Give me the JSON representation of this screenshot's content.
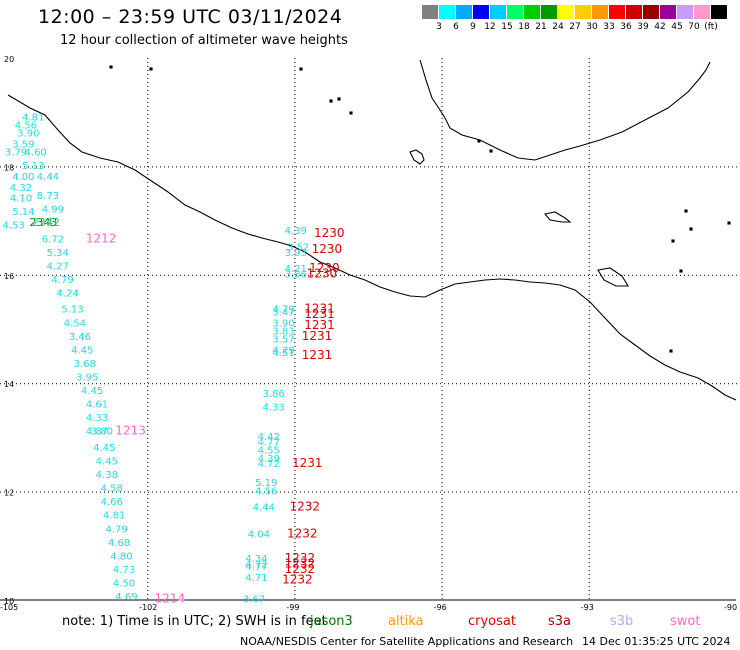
{
  "header": {
    "title": "12:00 – 23:59 UTC 03/11/2024",
    "subtitle": "12 hour collection of altimeter wave heights"
  },
  "legend": {
    "colors": [
      "#808080",
      "#00ffff",
      "#00aaff",
      "#0000ff",
      "#00ccff",
      "#00ff66",
      "#00cc00",
      "#009900",
      "#ffff00",
      "#ffcc00",
      "#ff9900",
      "#ff0000",
      "#cc0000",
      "#990000",
      "#990099",
      "#cc99ff",
      "#ff99cc",
      "#000000"
    ],
    "ticks": [
      "3",
      "6",
      "9",
      "12",
      "15",
      "18",
      "21",
      "24",
      "27",
      "30",
      "33",
      "36",
      "39",
      "42",
      "45",
      "70",
      "(ft)"
    ]
  },
  "map": {
    "lat_labels": [
      "20",
      "18",
      "16",
      "14",
      "12",
      "10"
    ],
    "lon_labels": [
      "-105",
      "-102",
      "-99",
      "-96",
      "-93",
      "-90"
    ],
    "jason_color": "#22dddd",
    "cryosat_color": "#dd0000",
    "swot_color": "#ff66cc",
    "jason_labels": [
      {
        "t": "4.81",
        "lon": -104.55,
        "lat": 18.85
      },
      {
        "t": "4.56",
        "lon": -104.7,
        "lat": 18.7
      },
      {
        "t": "3.90",
        "lon": -104.65,
        "lat": 18.55
      },
      {
        "t": "3.59",
        "lon": -104.75,
        "lat": 18.35
      },
      {
        "t": "3.79",
        "lon": -104.9,
        "lat": 18.2
      },
      {
        "t": "4.60",
        "lon": -104.5,
        "lat": 18.2
      },
      {
        "t": "5.13",
        "lon": -104.55,
        "lat": 17.95
      },
      {
        "t": "4.00",
        "lon": -104.75,
        "lat": 17.75
      },
      {
        "t": "4.44",
        "lon": -104.25,
        "lat": 17.75
      },
      {
        "t": "4.32",
        "lon": -104.8,
        "lat": 17.55
      },
      {
        "t": "8.73",
        "lon": -104.25,
        "lat": 17.4
      },
      {
        "t": "4.10",
        "lon": -104.8,
        "lat": 17.35
      },
      {
        "t": "5.14",
        "lon": -104.75,
        "lat": 17.1
      },
      {
        "t": "4.99",
        "lon": -104.15,
        "lat": 17.15
      },
      {
        "t": "4.53",
        "lon": -104.95,
        "lat": 16.85
      },
      {
        "t": "6.72",
        "lon": -104.15,
        "lat": 16.6
      },
      {
        "t": "5.34",
        "lon": -104.05,
        "lat": 16.35
      },
      {
        "t": "4.27",
        "lon": -104.05,
        "lat": 16.1
      },
      {
        "t": "4.79",
        "lon": -103.95,
        "lat": 15.85
      },
      {
        "t": "4.24",
        "lon": -103.85,
        "lat": 15.6
      },
      {
        "t": "5.13",
        "lon": -103.75,
        "lat": 15.3
      },
      {
        "t": "4.54",
        "lon": -103.7,
        "lat": 15.05
      },
      {
        "t": "3.46",
        "lon": -103.6,
        "lat": 14.8
      },
      {
        "t": "4.45",
        "lon": -103.55,
        "lat": 14.55
      },
      {
        "t": "3.68",
        "lon": -103.5,
        "lat": 14.3
      },
      {
        "t": "3.95",
        "lon": -103.45,
        "lat": 14.05
      },
      {
        "t": "4.45",
        "lon": -103.35,
        "lat": 13.8
      },
      {
        "t": "4.61",
        "lon": -103.25,
        "lat": 13.55
      },
      {
        "t": "4.33",
        "lon": -103.25,
        "lat": 13.3
      },
      {
        "t": "3.80",
        "lon": -103.15,
        "lat": 13.05
      },
      {
        "t": "4.87",
        "lon": -103.25,
        "lat": 13.05
      },
      {
        "t": "4.45",
        "lon": -103.1,
        "lat": 12.75
      },
      {
        "t": "4.45",
        "lon": -103.05,
        "lat": 12.5
      },
      {
        "t": "4.38",
        "lon": -103.05,
        "lat": 12.25
      },
      {
        "t": "4.58",
        "lon": -102.95,
        "lat": 12.0
      },
      {
        "t": "4.66",
        "lon": -102.95,
        "lat": 11.75
      },
      {
        "t": "4.81",
        "lon": -102.9,
        "lat": 11.5
      },
      {
        "t": "4.79",
        "lon": -102.85,
        "lat": 11.25
      },
      {
        "t": "4.68",
        "lon": -102.8,
        "lat": 11.0
      },
      {
        "t": "4.80",
        "lon": -102.75,
        "lat": 10.75
      },
      {
        "t": "4.73",
        "lon": -102.7,
        "lat": 10.5
      },
      {
        "t": "4.50",
        "lon": -102.7,
        "lat": 10.25
      },
      {
        "t": "4.69",
        "lon": -102.65,
        "lat": 10.0
      },
      {
        "t": "4.39",
        "lon": -99.2,
        "lat": 16.75
      },
      {
        "t": "3.52",
        "lon": -99.15,
        "lat": 16.45
      },
      {
        "t": "3.93",
        "lon": -99.2,
        "lat": 16.35
      },
      {
        "t": "4.21",
        "lon": -99.2,
        "lat": 16.05
      },
      {
        "t": "3.86",
        "lon": -99.2,
        "lat": 15.95
      },
      {
        "t": "4.79",
        "lon": -99.45,
        "lat": 15.3
      },
      {
        "t": "3.47",
        "lon": -99.45,
        "lat": 15.25
      },
      {
        "t": "3.90",
        "lon": -99.45,
        "lat": 15.05
      },
      {
        "t": "3.83",
        "lon": -99.45,
        "lat": 14.9
      },
      {
        "t": "3.57",
        "lon": -99.45,
        "lat": 14.75
      },
      {
        "t": "4.29",
        "lon": -99.45,
        "lat": 14.55
      },
      {
        "t": "4.51",
        "lon": -99.45,
        "lat": 14.5
      },
      {
        "t": "3.86",
        "lon": -99.65,
        "lat": 13.75
      },
      {
        "t": "4.33",
        "lon": -99.65,
        "lat": 13.5
      },
      {
        "t": "4.42",
        "lon": -99.75,
        "lat": 12.95
      },
      {
        "t": "4.77",
        "lon": -99.75,
        "lat": 12.85
      },
      {
        "t": "4.55",
        "lon": -99.75,
        "lat": 12.7
      },
      {
        "t": "4.39",
        "lon": -99.75,
        "lat": 12.55
      },
      {
        "t": "4.72",
        "lon": -99.75,
        "lat": 12.45
      },
      {
        "t": "5.19",
        "lon": -99.8,
        "lat": 12.1
      },
      {
        "t": "4.56",
        "lon": -99.8,
        "lat": 11.95
      },
      {
        "t": "4.44",
        "lon": -99.85,
        "lat": 11.65
      },
      {
        "t": "4.04",
        "lon": -99.95,
        "lat": 11.15
      },
      {
        "t": "4.34",
        "lon": -100.0,
        "lat": 10.7
      },
      {
        "t": "4.72",
        "lon": -100.0,
        "lat": 10.6
      },
      {
        "t": "4.77",
        "lon": -100.0,
        "lat": 10.55
      },
      {
        "t": "4.71",
        "lon": -100.0,
        "lat": 10.35
      },
      {
        "t": "3.67",
        "lon": -100.05,
        "lat": 9.95
      }
    ],
    "jason_dark_label": {
      "t": "2343",
      "lon": -104.4,
      "lat": 16.9,
      "color": "#117711"
    },
    "jason_dark_label2": {
      "t": "2342",
      "lon": -104.35,
      "lat": 16.9,
      "color": "#22cc66"
    },
    "cryosat_labels": [
      {
        "t": "1230",
        "lon": -98.6,
        "lat": 16.7
      },
      {
        "t": "1230",
        "lon": -98.65,
        "lat": 16.4
      },
      {
        "t": "1230",
        "lon": -98.7,
        "lat": 16.05
      },
      {
        "t": "1230",
        "lon": -98.75,
        "lat": 15.95
      },
      {
        "t": "1231",
        "lon": -98.8,
        "lat": 15.3
      },
      {
        "t": "1231",
        "lon": -98.8,
        "lat": 15.2
      },
      {
        "t": "1231",
        "lon": -98.8,
        "lat": 15.0
      },
      {
        "t": "1231",
        "lon": -98.85,
        "lat": 14.8
      },
      {
        "t": "1231",
        "lon": -98.85,
        "lat": 14.45
      },
      {
        "t": "1231",
        "lon": -99.05,
        "lat": 12.45
      },
      {
        "t": "1232",
        "lon": -99.1,
        "lat": 11.65
      },
      {
        "t": "1232",
        "lon": -99.15,
        "lat": 11.15
      },
      {
        "t": "1232",
        "lon": -99.2,
        "lat": 10.7
      },
      {
        "t": "1232",
        "lon": -99.2,
        "lat": 10.6
      },
      {
        "t": "1232",
        "lon": -99.2,
        "lat": 10.5
      },
      {
        "t": "1232",
        "lon": -99.25,
        "lat": 10.3
      }
    ],
    "swot_labels": [
      {
        "t": "1212",
        "lon": -103.25,
        "lat": 16.6
      },
      {
        "t": "1213",
        "lon": -102.65,
        "lat": 13.05
      },
      {
        "t": "1214",
        "lon": -101.85,
        "lat": 9.95
      }
    ]
  },
  "footer": {
    "note": "note:  1) Time is in UTC;  2) SWH is in feet",
    "sats": [
      {
        "name": "jason3",
        "color": "#007700",
        "x": 310
      },
      {
        "name": "altika",
        "color": "#ff9900",
        "x": 388
      },
      {
        "name": "cryosat",
        "color": "#dd0000",
        "x": 468
      },
      {
        "name": "s3a",
        "color": "#aa0000",
        "x": 548
      },
      {
        "name": "s3b",
        "color": "#b8a8ff",
        "x": 610
      },
      {
        "name": "swot",
        "color": "#ff66cc",
        "x": 670
      }
    ],
    "credit": "NOAA/NESDIS Center for Satellite Applications and Research",
    "timestamp": "14 Dec 01:35:25 UTC 2024"
  }
}
